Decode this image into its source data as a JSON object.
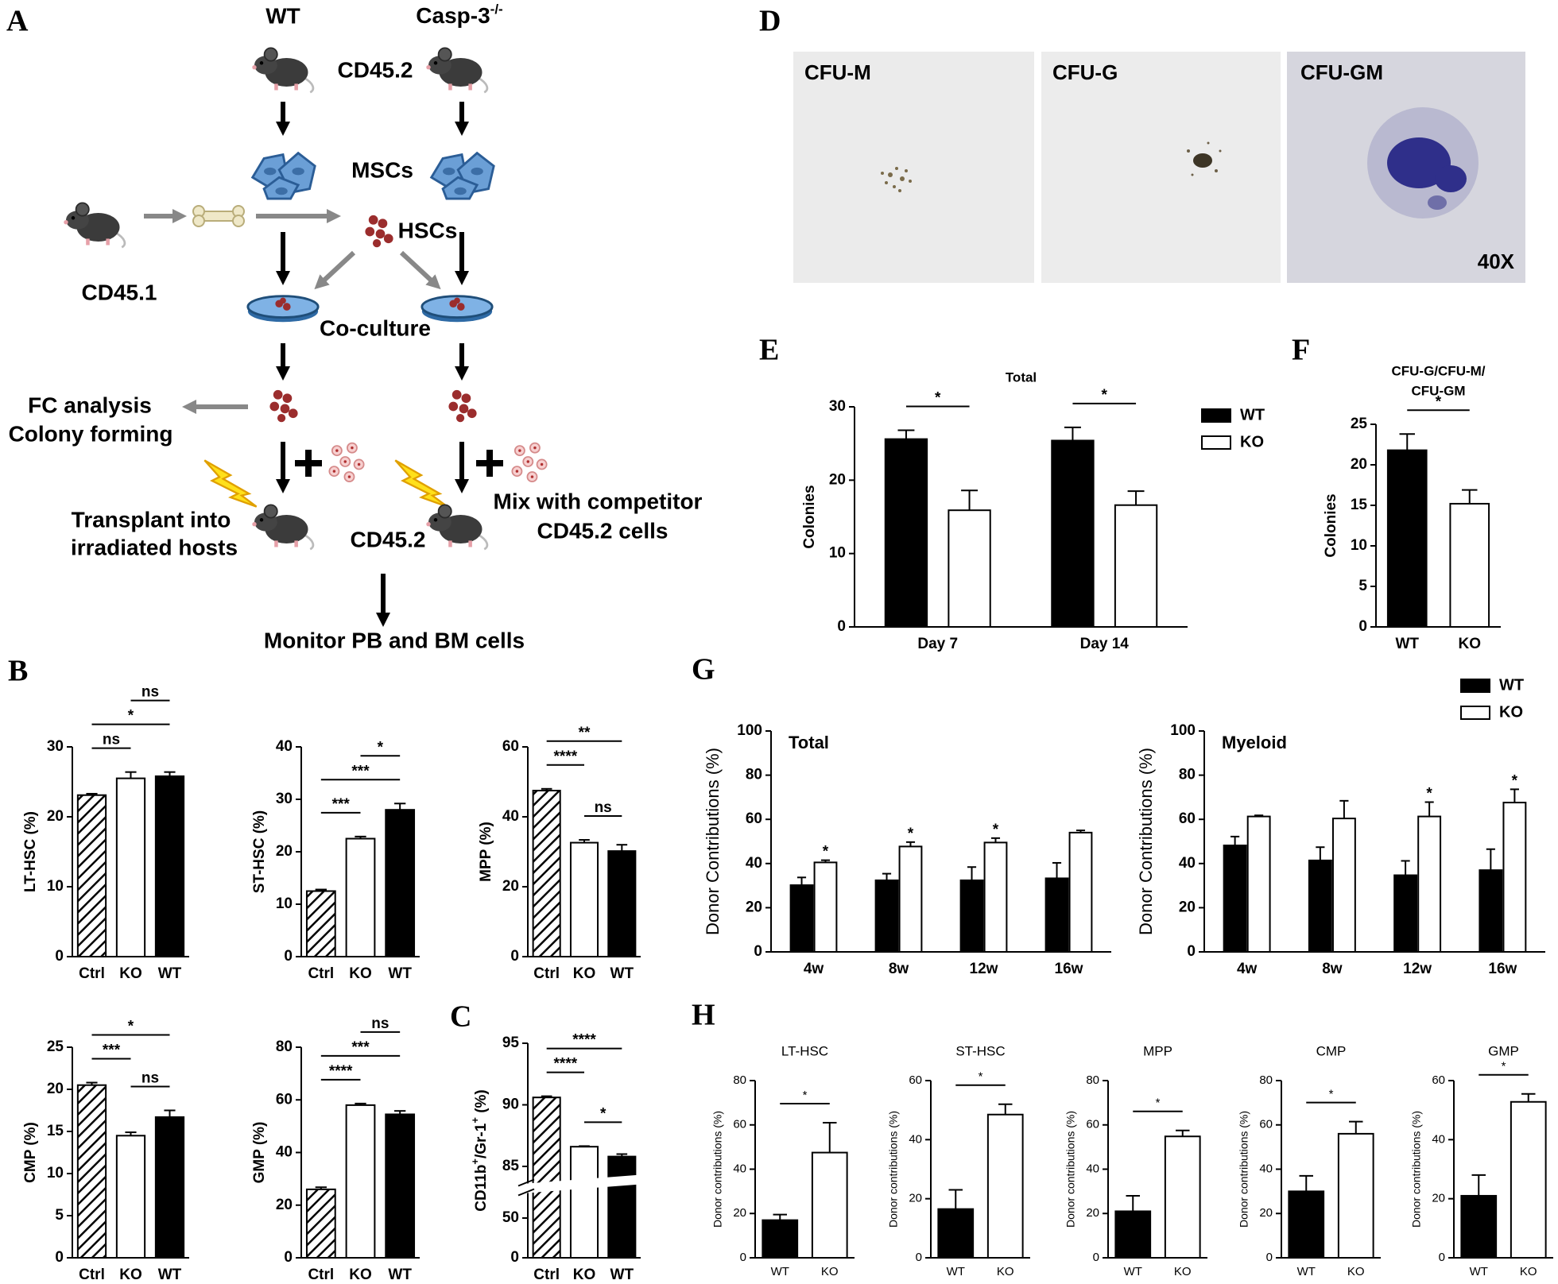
{
  "panel_labels": [
    "A",
    "B",
    "C",
    "D",
    "E",
    "F",
    "G",
    "H"
  ],
  "diagram": {
    "wt": "WT",
    "casp3": "Casp-3",
    "casp3_sup": "-/-",
    "cd45_2_top": "CD45.2",
    "mscs": "MSCs",
    "hscs": "HSCs",
    "cd45_1": "CD45.1",
    "coculture": "Co-culture",
    "fc_analysis": "FC analysis",
    "colony_forming": "Colony forming",
    "transplant": [
      "Transplant into",
      "irradiated hosts"
    ],
    "cd45_2_bottom": "CD45.2",
    "mix": [
      "Mix with competitor",
      "CD45.2 cells"
    ],
    "monitor": "Monitor PB and BM cells"
  },
  "micrographs": [
    {
      "label": "CFU-M"
    },
    {
      "label": "CFU-G"
    },
    {
      "label": "CFU-GM"
    }
  ],
  "magnification": "40X",
  "chart_data": [
    {
      "type": "bar",
      "ylabel": "LT-HSC (%)",
      "categories": [
        "Ctrl",
        "KO",
        "WT"
      ],
      "values": [
        23.1,
        25.5,
        25.8
      ],
      "errors": [
        0.2,
        0.9,
        0.6
      ],
      "bar_styles": [
        "hatched",
        "open",
        "solid"
      ],
      "ylim": [
        0,
        30
      ],
      "yticks": [
        0,
        10,
        20,
        30
      ],
      "annotations": [
        {
          "between": [
            "Ctrl",
            "KO"
          ],
          "label": "ns"
        },
        {
          "between": [
            "Ctrl",
            "WT"
          ],
          "label": "*"
        },
        {
          "between": [
            "KO",
            "WT"
          ],
          "label": "ns"
        }
      ]
    },
    {
      "type": "bar",
      "ylabel": "ST-HSC (%)",
      "categories": [
        "Ctrl",
        "KO",
        "WT"
      ],
      "values": [
        12.5,
        22.5,
        28.0
      ],
      "errors": [
        0.3,
        0.4,
        1.2
      ],
      "bar_styles": [
        "hatched",
        "open",
        "solid"
      ],
      "ylim": [
        0,
        40
      ],
      "yticks": [
        0,
        10,
        20,
        30,
        40
      ],
      "annotations": [
        {
          "between": [
            "Ctrl",
            "KO"
          ],
          "label": "***"
        },
        {
          "between": [
            "Ctrl",
            "WT"
          ],
          "label": "***"
        },
        {
          "between": [
            "KO",
            "WT"
          ],
          "label": "*"
        }
      ]
    },
    {
      "type": "bar",
      "ylabel": "MPP (%)",
      "categories": [
        "Ctrl",
        "KO",
        "WT"
      ],
      "values": [
        47.5,
        32.6,
        30.2
      ],
      "errors": [
        0.5,
        0.8,
        1.8
      ],
      "bar_styles": [
        "hatched",
        "open",
        "solid"
      ],
      "ylim": [
        0,
        60
      ],
      "yticks": [
        0,
        20,
        40,
        60
      ],
      "annotations": [
        {
          "between": [
            "KO",
            "WT"
          ],
          "label": "ns"
        },
        {
          "between": [
            "Ctrl",
            "KO"
          ],
          "label": "****"
        },
        {
          "between": [
            "Ctrl",
            "WT"
          ],
          "label": "**"
        }
      ]
    },
    {
      "type": "bar",
      "ylabel": "CMP (%)",
      "categories": [
        "Ctrl",
        "KO",
        "WT"
      ],
      "values": [
        20.5,
        14.5,
        16.7
      ],
      "errors": [
        0.3,
        0.4,
        0.8
      ],
      "bar_styles": [
        "hatched",
        "open",
        "solid"
      ],
      "ylim": [
        0,
        25
      ],
      "yticks": [
        0,
        5,
        10,
        15,
        20,
        25
      ],
      "annotations": [
        {
          "between": [
            "KO",
            "WT"
          ],
          "label": "ns"
        },
        {
          "between": [
            "Ctrl",
            "KO"
          ],
          "label": "***"
        },
        {
          "between": [
            "Ctrl",
            "WT"
          ],
          "label": "*"
        }
      ]
    },
    {
      "type": "bar",
      "ylabel": "GMP (%)",
      "categories": [
        "Ctrl",
        "KO",
        "WT"
      ],
      "values": [
        26,
        58,
        54.5
      ],
      "errors": [
        0.8,
        0.6,
        1.3
      ],
      "bar_styles": [
        "hatched",
        "open",
        "solid"
      ],
      "ylim": [
        0,
        80
      ],
      "yticks": [
        0,
        20,
        40,
        60,
        80
      ],
      "annotations": [
        {
          "between": [
            "Ctrl",
            "KO"
          ],
          "label": "****"
        },
        {
          "between": [
            "Ctrl",
            "WT"
          ],
          "label": "***"
        },
        {
          "between": [
            "KO",
            "WT"
          ],
          "label": "ns"
        }
      ]
    },
    {
      "type": "bar",
      "ylabel_parts": [
        {
          "text": "CD11b"
        },
        {
          "text": "+",
          "sup": true
        },
        {
          "text": "/Gr-1"
        },
        {
          "text": "+",
          "sup": true
        },
        {
          "text": " (%)"
        }
      ],
      "categories": [
        "Ctrl",
        "KO",
        "WT"
      ],
      "values": [
        90.6,
        86.6,
        85.8
      ],
      "errors": [
        0.1,
        0.05,
        0.2
      ],
      "bar_styles": [
        "hatched",
        "open",
        "solid"
      ],
      "ylim": [
        0,
        95
      ],
      "ybreak": [
        50,
        85
      ],
      "yticks": [
        0,
        50,
        85,
        90,
        95
      ],
      "annotations": [
        {
          "between": [
            "KO",
            "WT"
          ],
          "label": "*"
        },
        {
          "between": [
            "Ctrl",
            "KO"
          ],
          "label": "****"
        },
        {
          "between": [
            "Ctrl",
            "WT"
          ],
          "label": "****"
        }
      ]
    },
    {
      "type": "grouped_bar",
      "title": "Total",
      "ylabel": "Colonies",
      "categories": [
        "Day 7",
        "Day 14"
      ],
      "series": [
        {
          "name": "WT",
          "color": "#000000",
          "values": [
            25.6,
            25.4
          ],
          "errors": [
            1.2,
            1.8
          ]
        },
        {
          "name": "KO",
          "color": "#ffffff",
          "values": [
            15.9,
            16.6
          ],
          "errors": [
            2.7,
            1.9
          ]
        }
      ],
      "ylim": [
        0,
        30
      ],
      "yticks": [
        0,
        10,
        20,
        30
      ],
      "legend": "right-outside",
      "annotations": [
        {
          "category": "Day 7",
          "between": [
            "WT",
            "KO"
          ],
          "label": "*"
        },
        {
          "category": "Day 14",
          "between": [
            "WT",
            "KO"
          ],
          "label": "*"
        }
      ]
    },
    {
      "type": "bar",
      "title": [
        "CFU-G/CFU-M/",
        "CFU-GM"
      ],
      "ylabel": "Colonies",
      "categories": [
        "WT",
        "KO"
      ],
      "values": [
        21.8,
        15.2
      ],
      "errors": [
        2.0,
        1.7
      ],
      "bar_styles": [
        "solid",
        "open"
      ],
      "ylim": [
        0,
        25
      ],
      "yticks": [
        0,
        5,
        10,
        15,
        20,
        25
      ],
      "annotations": [
        {
          "between": [
            "WT",
            "KO"
          ],
          "label": "*"
        }
      ]
    },
    {
      "type": "grouped_bar",
      "title": "Total",
      "title_position": "inside-left",
      "ylabel": "Donor Contributions (%)",
      "categories": [
        "4w",
        "8w",
        "12w",
        "16w"
      ],
      "series": [
        {
          "name": "WT",
          "color": "#000000",
          "values": [
            30.2,
            32.4,
            32.4,
            33.3
          ],
          "errors": [
            3.5,
            3,
            6,
            7
          ]
        },
        {
          "name": "KO",
          "color": "#ffffff",
          "values": [
            40.5,
            47.7,
            49.5,
            54
          ],
          "errors": [
            1,
            2,
            2,
            1
          ]
        }
      ],
      "ylim": [
        0,
        100
      ],
      "yticks": [
        0,
        20,
        40,
        60,
        80,
        100
      ],
      "annotations": [
        {
          "category": "4w",
          "series": "KO",
          "label": "*"
        },
        {
          "category": "8w",
          "series": "KO",
          "label": "*"
        },
        {
          "category": "12w",
          "series": "KO",
          "label": "*"
        }
      ]
    },
    {
      "type": "grouped_bar",
      "title": "Myeloid",
      "title_position": "inside-left",
      "ylabel": "Donor Contributions (%)",
      "categories": [
        "4w",
        "8w",
        "12w",
        "16w"
      ],
      "series": [
        {
          "name": "WT",
          "color": "#000000",
          "values": [
            48.2,
            41.4,
            34.7,
            37
          ],
          "errors": [
            4,
            6,
            6.5,
            9.5
          ]
        },
        {
          "name": "KO",
          "color": "#ffffff",
          "values": [
            61.3,
            60.4,
            61.3,
            67.6
          ],
          "errors": [
            0.5,
            8,
            6.5,
            6
          ]
        }
      ],
      "ylim": [
        0,
        100
      ],
      "yticks": [
        0,
        20,
        40,
        60,
        80,
        100
      ],
      "legend": "top-right-outside",
      "annotations": [
        {
          "category": "12w",
          "series": "KO",
          "label": "*"
        },
        {
          "category": "16w",
          "series": "KO",
          "label": "*"
        }
      ]
    },
    {
      "type": "bar",
      "title": "LT-HSC",
      "ylabel": "Donor contributions (%)",
      "categories": [
        "WT",
        "KO"
      ],
      "values": [
        17,
        47.5
      ],
      "errors": [
        2.5,
        13.5
      ],
      "bar_styles": [
        "solid",
        "open"
      ],
      "ylim": [
        0,
        80
      ],
      "yticks": [
        0,
        20,
        40,
        60,
        80
      ],
      "annotations": [
        {
          "between": [
            "WT",
            "KO"
          ],
          "label": "*"
        }
      ]
    },
    {
      "type": "bar",
      "title": "ST-HSC",
      "ylabel": "Donor contributions (%)",
      "categories": [
        "WT",
        "KO"
      ],
      "values": [
        16.5,
        48.5
      ],
      "errors": [
        6.5,
        3.5
      ],
      "bar_styles": [
        "solid",
        "open"
      ],
      "ylim": [
        0,
        60
      ],
      "yticks": [
        0,
        20,
        40,
        60
      ],
      "annotations": [
        {
          "between": [
            "WT",
            "KO"
          ],
          "label": "*"
        }
      ]
    },
    {
      "type": "bar",
      "title": "MPP",
      "ylabel": "Donor contributions (%)",
      "categories": [
        "WT",
        "KO"
      ],
      "values": [
        21,
        54.8
      ],
      "errors": [
        7,
        2.7
      ],
      "bar_styles": [
        "solid",
        "open"
      ],
      "ylim": [
        0,
        80
      ],
      "yticks": [
        0,
        20,
        40,
        60,
        80
      ],
      "annotations": [
        {
          "between": [
            "WT",
            "KO"
          ],
          "label": "*"
        }
      ]
    },
    {
      "type": "bar",
      "title": "CMP",
      "ylabel": "Donor contributions (%)",
      "categories": [
        "WT",
        "KO"
      ],
      "values": [
        30,
        56
      ],
      "errors": [
        7,
        5.5
      ],
      "bar_styles": [
        "solid",
        "open"
      ],
      "ylim": [
        0,
        80
      ],
      "yticks": [
        0,
        20,
        40,
        60,
        80
      ],
      "annotations": [
        {
          "between": [
            "WT",
            "KO"
          ],
          "label": "*"
        }
      ]
    },
    {
      "type": "bar",
      "title": "GMP",
      "ylabel": "Donor contributions (%)",
      "categories": [
        "WT",
        "KO"
      ],
      "values": [
        21,
        52.8
      ],
      "errors": [
        7,
        2.7
      ],
      "bar_styles": [
        "solid",
        "open"
      ],
      "ylim": [
        0,
        60
      ],
      "yticks": [
        0,
        20,
        40,
        60
      ],
      "annotations": [
        {
          "between": [
            "WT",
            "KO"
          ],
          "label": "*"
        }
      ]
    }
  ]
}
